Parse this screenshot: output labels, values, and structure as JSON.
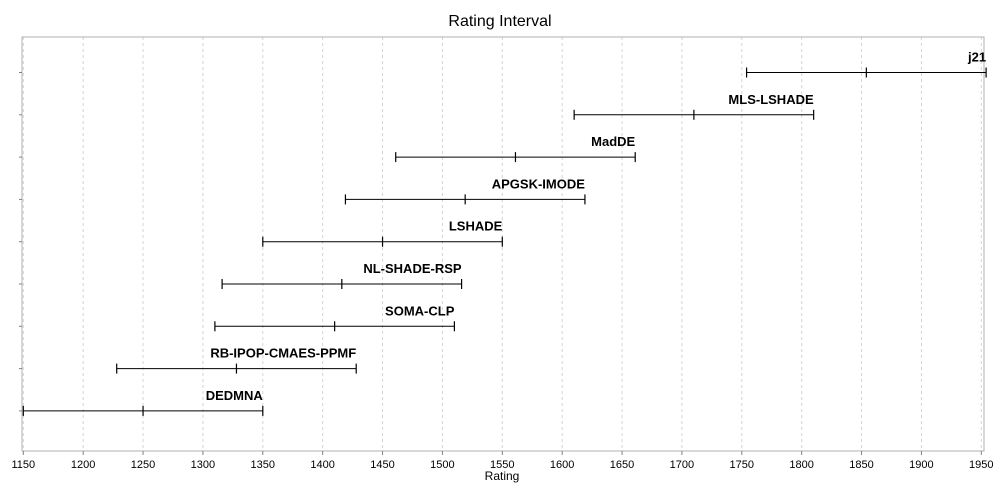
{
  "chart_data": {
    "type": "interval",
    "title": "Rating Interval",
    "xlabel": "Rating",
    "xlim": [
      1150,
      1955
    ],
    "xticks": [
      1150,
      1200,
      1250,
      1300,
      1350,
      1400,
      1450,
      1500,
      1550,
      1600,
      1650,
      1700,
      1750,
      1800,
      1850,
      1900,
      1950
    ],
    "grid": true,
    "series": [
      {
        "name": "j21",
        "low": 1754,
        "mid": 1854,
        "high": 1954
      },
      {
        "name": "MLS-LSHADE",
        "low": 1610,
        "mid": 1710,
        "high": 1810
      },
      {
        "name": "MadDE",
        "low": 1461,
        "mid": 1561,
        "high": 1661
      },
      {
        "name": "APGSK-IMODE",
        "low": 1419,
        "mid": 1519,
        "high": 1619
      },
      {
        "name": "LSHADE",
        "low": 1350,
        "mid": 1450,
        "high": 1550
      },
      {
        "name": "NL-SHADE-RSP",
        "low": 1316,
        "mid": 1416,
        "high": 1516
      },
      {
        "name": "SOMA-CLP",
        "low": 1310,
        "mid": 1410,
        "high": 1510
      },
      {
        "name": "RB-IPOP-CMAES-PPMF",
        "low": 1228,
        "mid": 1328,
        "high": 1428
      },
      {
        "name": "DEDMNA",
        "low": 1150,
        "mid": 1250,
        "high": 1350
      }
    ]
  }
}
